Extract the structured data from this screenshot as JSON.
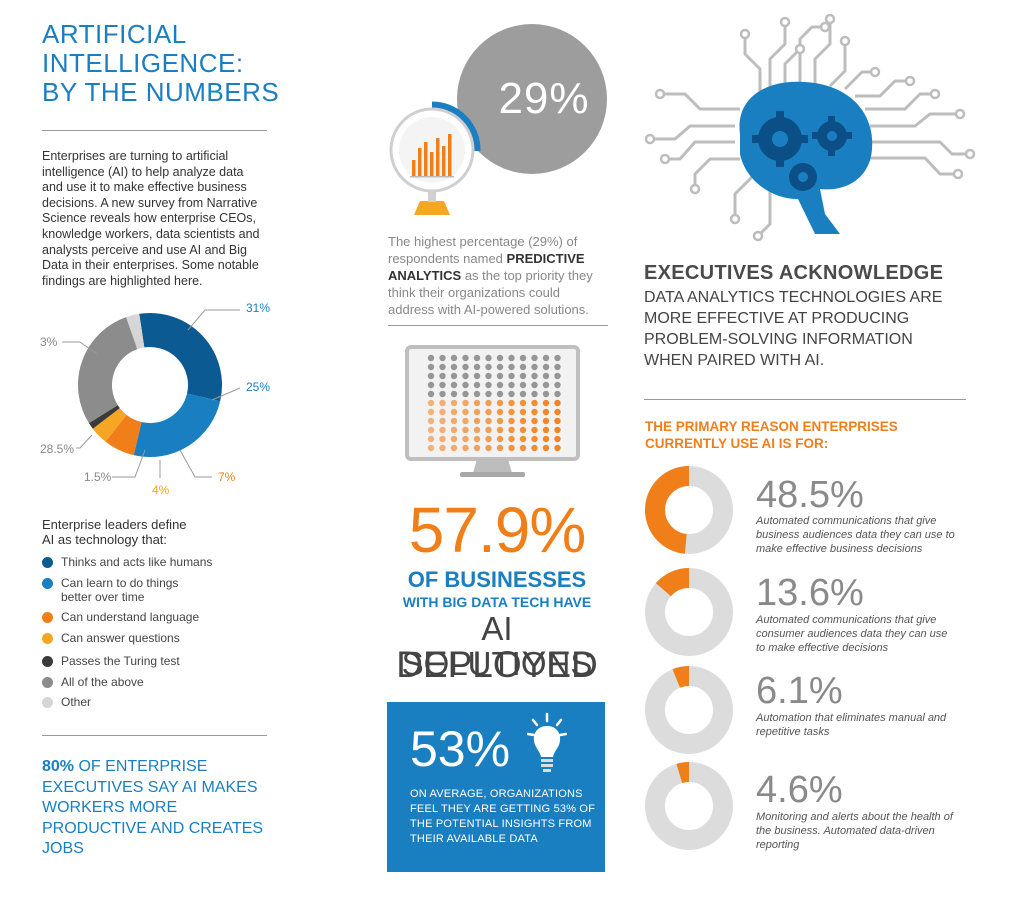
{
  "header": {
    "title": [
      "ARTIFICIAL",
      "INTELLIGENCE:",
      "BY THE NUMBERS"
    ],
    "intro": "Enterprises are turning to artificial intelligence (AI) to help analyze data and use it to make effective business decisions. A new survey from Narrative Science reveals how enterprise CEOs, knowledge workers, data scientists and analysts perceive and use AI and Big Data in their enterprises. Some notable findings are highlighted here."
  },
  "colors": {
    "dark_blue": "#0b5a92",
    "blue": "#1a7fc1",
    "orange": "#f07f1a",
    "yellow": "#f6a623",
    "black": "#3a3a3a",
    "gray": "#8c8c8c",
    "light_gray": "#d6d6d6"
  },
  "chart_data": [
    {
      "type": "pie",
      "donut": true,
      "title": "",
      "slices": [
        {
          "label": "31%",
          "value": 31,
          "category": "Thinks and acts like humans",
          "color": "#0b5a92"
        },
        {
          "label": "25%",
          "value": 25,
          "category": "Can learn to do things better over time",
          "color": "#1a7fc1"
        },
        {
          "label": "7%",
          "value": 7,
          "category": "Can understand language",
          "color": "#f07f1a"
        },
        {
          "label": "4%",
          "value": 4,
          "category": "Can answer questions",
          "color": "#f6a623"
        },
        {
          "label": "1.5%",
          "value": 1.5,
          "category": "Passes the Turing test",
          "color": "#3a3a3a"
        },
        {
          "label": "28.5%",
          "value": 28.5,
          "category": "All of the above",
          "color": "#8c8c8c"
        },
        {
          "label": "3%",
          "value": 3,
          "category": "Other",
          "color": "#d6d6d6"
        }
      ]
    },
    {
      "type": "pie",
      "donut": true,
      "title": "THE PRIMARY REASON ENTERPRISES CURRENTLY USE AI IS FOR:",
      "items": [
        {
          "value": 48.5,
          "label": "48.5%",
          "desc": "Automated communications that give business audiences data they can use to make effective business decisions"
        },
        {
          "value": 13.6,
          "label": "13.6%",
          "desc": "Automated communications that give consumer audiences data they can use to make effective decisions"
        },
        {
          "value": 6.1,
          "label": "6.1%",
          "desc": "Automation that eliminates manual and repetitive tasks"
        },
        {
          "value": 4.6,
          "label": "4.6%",
          "desc": "Monitoring and alerts about the health of the business. Automated data-driven reporting"
        }
      ]
    }
  ],
  "definitions": {
    "heading_line1": "Enterprise leaders define",
    "heading_line2": "AI as technology that:",
    "items": [
      {
        "label": "Thinks and acts like humans",
        "color": "#0b5a92"
      },
      {
        "label": "Can learn to do things",
        "label2": "better over time",
        "color": "#1a7fc1"
      },
      {
        "label": "Can understand language",
        "color": "#f07f1a"
      },
      {
        "label": "Can answer questions",
        "color": "#f6a623"
      },
      {
        "label": "Passes the Turing test",
        "color": "#3a3a3a"
      },
      {
        "label": "All of the above",
        "color": "#8c8c8c"
      },
      {
        "label": "Other",
        "color": "#d6d6d6"
      }
    ]
  },
  "stat80": {
    "bold": "80%",
    "rest": " OF ENTERPRISE EXECUTIVES SAY AI MAKES WORKERS MORE PRODUCTIVE AND CREATES JOBS"
  },
  "predictive": {
    "percent": "29%",
    "text_before": "The highest percentage (29%) of respondents named ",
    "bold": "PREDICTIVE ANALYTICS",
    "text_after": " as the top priority they think their organizations could address with AI-powered solutions."
  },
  "deployed": {
    "percent": "57.9%",
    "line1": "OF BUSINESSES",
    "line2": "WITH BIG DATA TECH HAVE",
    "line3": "AI SOLUTIONS",
    "line4": "DEPLOYED",
    "dot_fill_fraction": 0.579
  },
  "insights": {
    "percent": "53%",
    "text": "ON AVERAGE, ORGANIZATIONS FEEL THEY ARE GETTING 53% OF THE POTENTIAL INSIGHTS FROM THEIR AVAILABLE DATA"
  },
  "executives": {
    "heading": "EXECUTIVES ACKNOWLEDGE",
    "body": "DATA ANALYTICS TECHNOLOGIES ARE MORE EFFECTIVE AT PRODUCING PROBLEM-SOLVING INFORMATION WHEN PAIRED WITH AI."
  },
  "reasons": {
    "heading": "THE PRIMARY REASON ENTERPRISES CURRENTLY USE AI IS FOR:"
  }
}
